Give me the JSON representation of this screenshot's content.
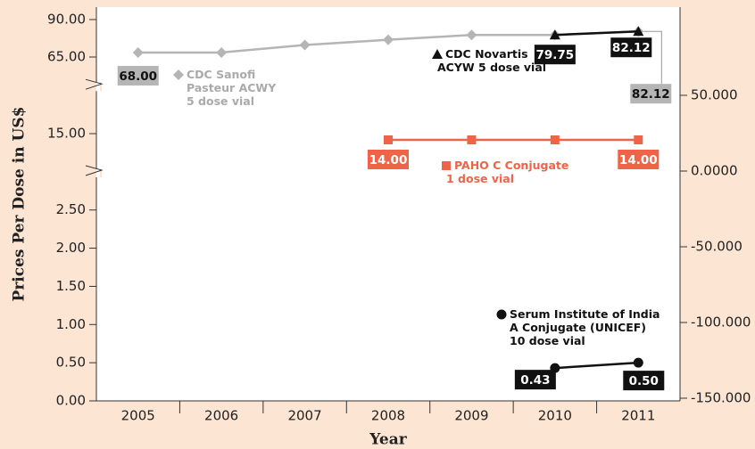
{
  "chart_data": {
    "type": "line",
    "y_title": "Prices Per Dose in US$",
    "x_title": "Year",
    "categories": [
      "2005",
      "2006",
      "2007",
      "2008",
      "2009",
      "2010",
      "2011"
    ],
    "ylim": [
      0,
      92
    ],
    "y_breaks": [
      [
        2.8,
        11
      ],
      [
        19,
        60
      ]
    ],
    "yticks": [
      {
        "value": 0,
        "label": "0.00"
      },
      {
        "value": 0.5,
        "label": "0.50"
      },
      {
        "value": 1,
        "label": "1.00"
      },
      {
        "value": 1.5,
        "label": "1.50"
      },
      {
        "value": 2,
        "label": "2.00"
      },
      {
        "value": 2.5,
        "label": "2.50"
      },
      {
        "value": 15,
        "label": "15.00"
      },
      {
        "value": 65,
        "label": "65.00"
      },
      {
        "value": 90,
        "label": "90.00"
      }
    ],
    "y2lim": [
      -150,
      50
    ],
    "y2ticks": [
      {
        "value": 50,
        "label": "50.000"
      },
      {
        "value": 0,
        "label": "0.0000"
      },
      {
        "value": -50,
        "label": "-50.000"
      },
      {
        "value": -100,
        "label": "-100.000"
      },
      {
        "value": -150,
        "label": "-150.000"
      }
    ],
    "series": [
      {
        "name": "CDC Sanofi\nPasteur ACWY\n5 dose vial",
        "color": "#b5b5b5",
        "marker": "diamond",
        "values": [
          68,
          68,
          73,
          76.5,
          79.75,
          79.75,
          82.12
        ],
        "value_labels": [
          "68.00",
          null,
          null,
          null,
          null,
          null,
          "82.12"
        ]
      },
      {
        "name": "CDC Novartis\nACYW 5 dose vial",
        "color": "#111111",
        "marker": "triangle",
        "values": [
          null,
          null,
          null,
          null,
          null,
          79.75,
          82.12
        ],
        "value_labels": [
          null,
          null,
          null,
          null,
          null,
          "79.75",
          "82.12"
        ]
      },
      {
        "name": "PAHO C Conjugate\n1 dose vial",
        "color": "#ee6448",
        "marker": "square",
        "values": [
          null,
          null,
          null,
          14,
          14,
          14,
          14
        ],
        "value_labels": [
          null,
          null,
          null,
          "14.00",
          null,
          null,
          "14.00"
        ]
      },
      {
        "name": "Serum Institute of India\nA Conjugate (UNICEF)\n10 dose vial",
        "color": "#111111",
        "marker": "circle",
        "values": [
          null,
          null,
          null,
          null,
          null,
          0.43,
          0.5
        ],
        "value_labels": [
          null,
          null,
          null,
          null,
          null,
          "0.43",
          "0.50"
        ]
      }
    ]
  }
}
